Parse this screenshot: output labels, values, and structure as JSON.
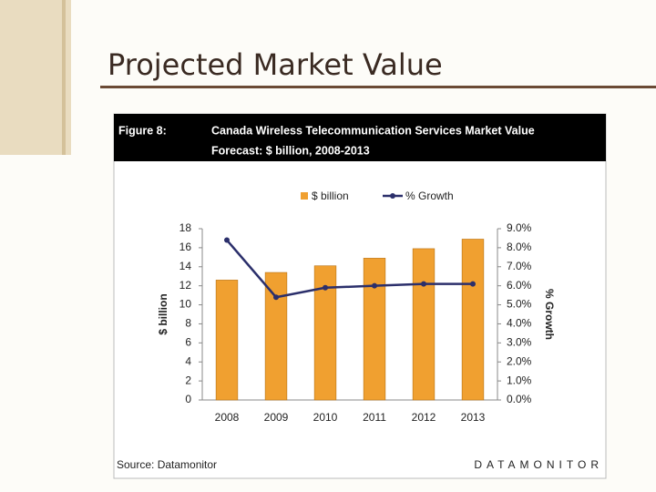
{
  "slide_title": "Projected Market Value",
  "chart_data": {
    "type": "bar",
    "figure_label": "Figure 8:",
    "title": "Canada Wireless Telecommunication Services Market Value",
    "subtitle": "Forecast: $ billion, 2008-2013",
    "y_label": "$ billion",
    "y2_label": "% Growth",
    "source": "Source: Datamonitor",
    "brand": "DATAMONITOR",
    "categories": [
      "2008",
      "2009",
      "2010",
      "2011",
      "2012",
      "2013"
    ],
    "series": [
      {
        "name": "$ billion",
        "type": "bar",
        "color": "#f0a030",
        "values": [
          12.6,
          13.4,
          14.1,
          14.9,
          15.9,
          16.9
        ]
      },
      {
        "name": "% Growth",
        "type": "line",
        "axis": "y2",
        "color": "#2b2f6b",
        "values": [
          8.4,
          5.4,
          5.9,
          6.0,
          6.1,
          6.1
        ]
      }
    ],
    "ylim": [
      0,
      18
    ],
    "yticks": [
      0,
      2,
      4,
      6,
      8,
      10,
      12,
      14,
      16,
      18
    ],
    "y2lim": [
      0,
      9
    ],
    "y2ticks": [
      {
        "value": 0,
        "label": "0.0%"
      },
      {
        "value": 1,
        "label": "1.0%"
      },
      {
        "value": 2,
        "label": "2.0%"
      },
      {
        "value": 3,
        "label": "3.0%"
      },
      {
        "value": 4,
        "label": "4.0%"
      },
      {
        "value": 5,
        "label": "5.0%"
      },
      {
        "value": 6,
        "label": "6.0%"
      },
      {
        "value": 7,
        "label": "7.0%"
      },
      {
        "value": 8,
        "label": "8.0%"
      },
      {
        "value": 9,
        "label": "9.0%"
      }
    ],
    "legend": "top"
  }
}
